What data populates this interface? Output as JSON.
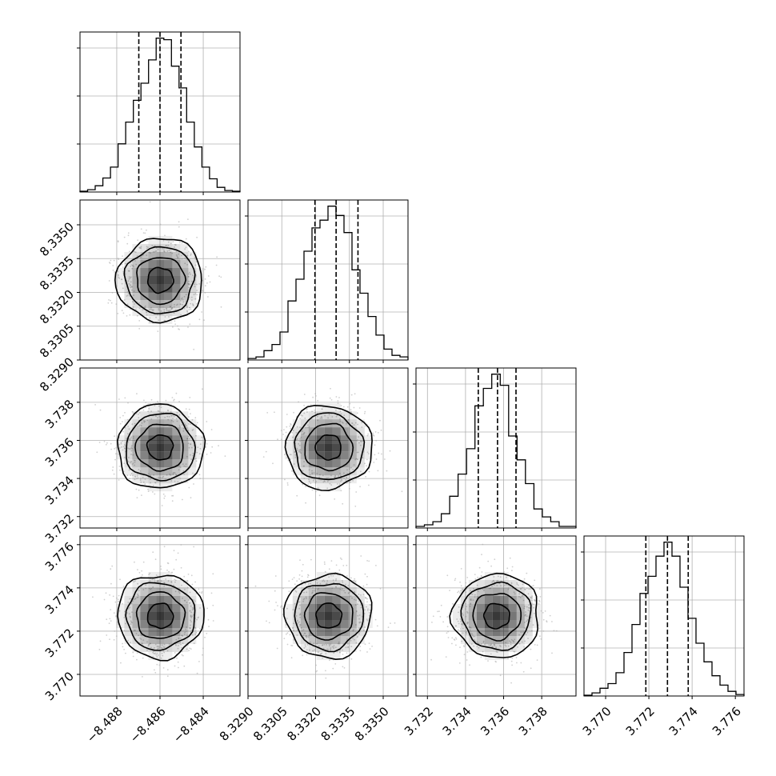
{
  "chart_data": {
    "type": "corner",
    "parameters": [
      {
        "name": "",
        "range": [
          -8.4897,
          -8.4823
        ],
        "ticks": [
          {
            "value": -8.488,
            "label": "−8.488"
          },
          {
            "value": -8.486,
            "label": "−8.486"
          },
          {
            "value": -8.484,
            "label": "−8.484"
          }
        ],
        "quantiles": [
          -8.48698,
          -8.486,
          -8.48503
        ],
        "hist": [
          0.005,
          0.015,
          0.04,
          0.09,
          0.16,
          0.31,
          0.45,
          0.59,
          0.7,
          0.85,
          0.99,
          0.98,
          0.81,
          0.67,
          0.45,
          0.29,
          0.16,
          0.085,
          0.03,
          0.01,
          0.005
        ]
      },
      {
        "name": "",
        "range": [
          8.329,
          8.3361
        ],
        "ticks": [
          {
            "value": 8.329,
            "label": "8.3290"
          },
          {
            "value": 8.3305,
            "label": "8.3305"
          },
          {
            "value": 8.332,
            "label": "8.3320"
          },
          {
            "value": 8.3335,
            "label": "8.3335"
          },
          {
            "value": 8.335,
            "label": "8.3350"
          }
        ],
        "quantiles": [
          8.33197,
          8.33291,
          8.33388
        ],
        "hist": [
          0.01,
          0.02,
          0.06,
          0.1,
          0.18,
          0.38,
          0.52,
          0.7,
          0.85,
          0.9,
          0.99,
          0.93,
          0.82,
          0.58,
          0.43,
          0.28,
          0.16,
          0.07,
          0.03,
          0.02
        ]
      },
      {
        "name": "",
        "range": [
          3.7314,
          3.7398
        ],
        "ticks": [
          {
            "value": 3.732,
            "label": "3.732"
          },
          {
            "value": 3.734,
            "label": "3.734"
          },
          {
            "value": 3.736,
            "label": "3.736"
          },
          {
            "value": 3.738,
            "label": "3.738"
          }
        ],
        "quantiles": [
          3.73467,
          3.73568,
          3.73665
        ],
        "hist": [
          0.01,
          0.02,
          0.04,
          0.09,
          0.2,
          0.34,
          0.5,
          0.77,
          0.88,
          0.97,
          0.9,
          0.58,
          0.43,
          0.28,
          0.12,
          0.07,
          0.04,
          0.01,
          0.01
        ]
      },
      {
        "name": "",
        "range": [
          3.769,
          3.7764
        ],
        "ticks": [
          {
            "value": 3.77,
            "label": "3.770"
          },
          {
            "value": 3.772,
            "label": "3.772"
          },
          {
            "value": 3.774,
            "label": "3.774"
          },
          {
            "value": 3.776,
            "label": "3.776"
          }
        ],
        "quantiles": [
          3.77186,
          3.77286,
          3.77382
        ],
        "hist": [
          0.005,
          0.02,
          0.05,
          0.08,
          0.15,
          0.28,
          0.46,
          0.66,
          0.77,
          0.9,
          0.99,
          0.9,
          0.7,
          0.5,
          0.34,
          0.22,
          0.13,
          0.07,
          0.03,
          0.01
        ]
      }
    ],
    "center_fraction": [
      [
        0.51,
        0.5
      ],
      [
        0.52,
        0.5
      ],
      [
        0.52,
        0.52
      ],
      [
        0.51,
        0.5
      ]
    ],
    "contour_levels_sigma": [
      0.5,
      1.0,
      1.5,
      2.0
    ],
    "grid": true,
    "colors": {
      "line": "#000000",
      "points": "#a9a9a9",
      "grid": "#b0b0b0",
      "density": "#000000"
    }
  }
}
